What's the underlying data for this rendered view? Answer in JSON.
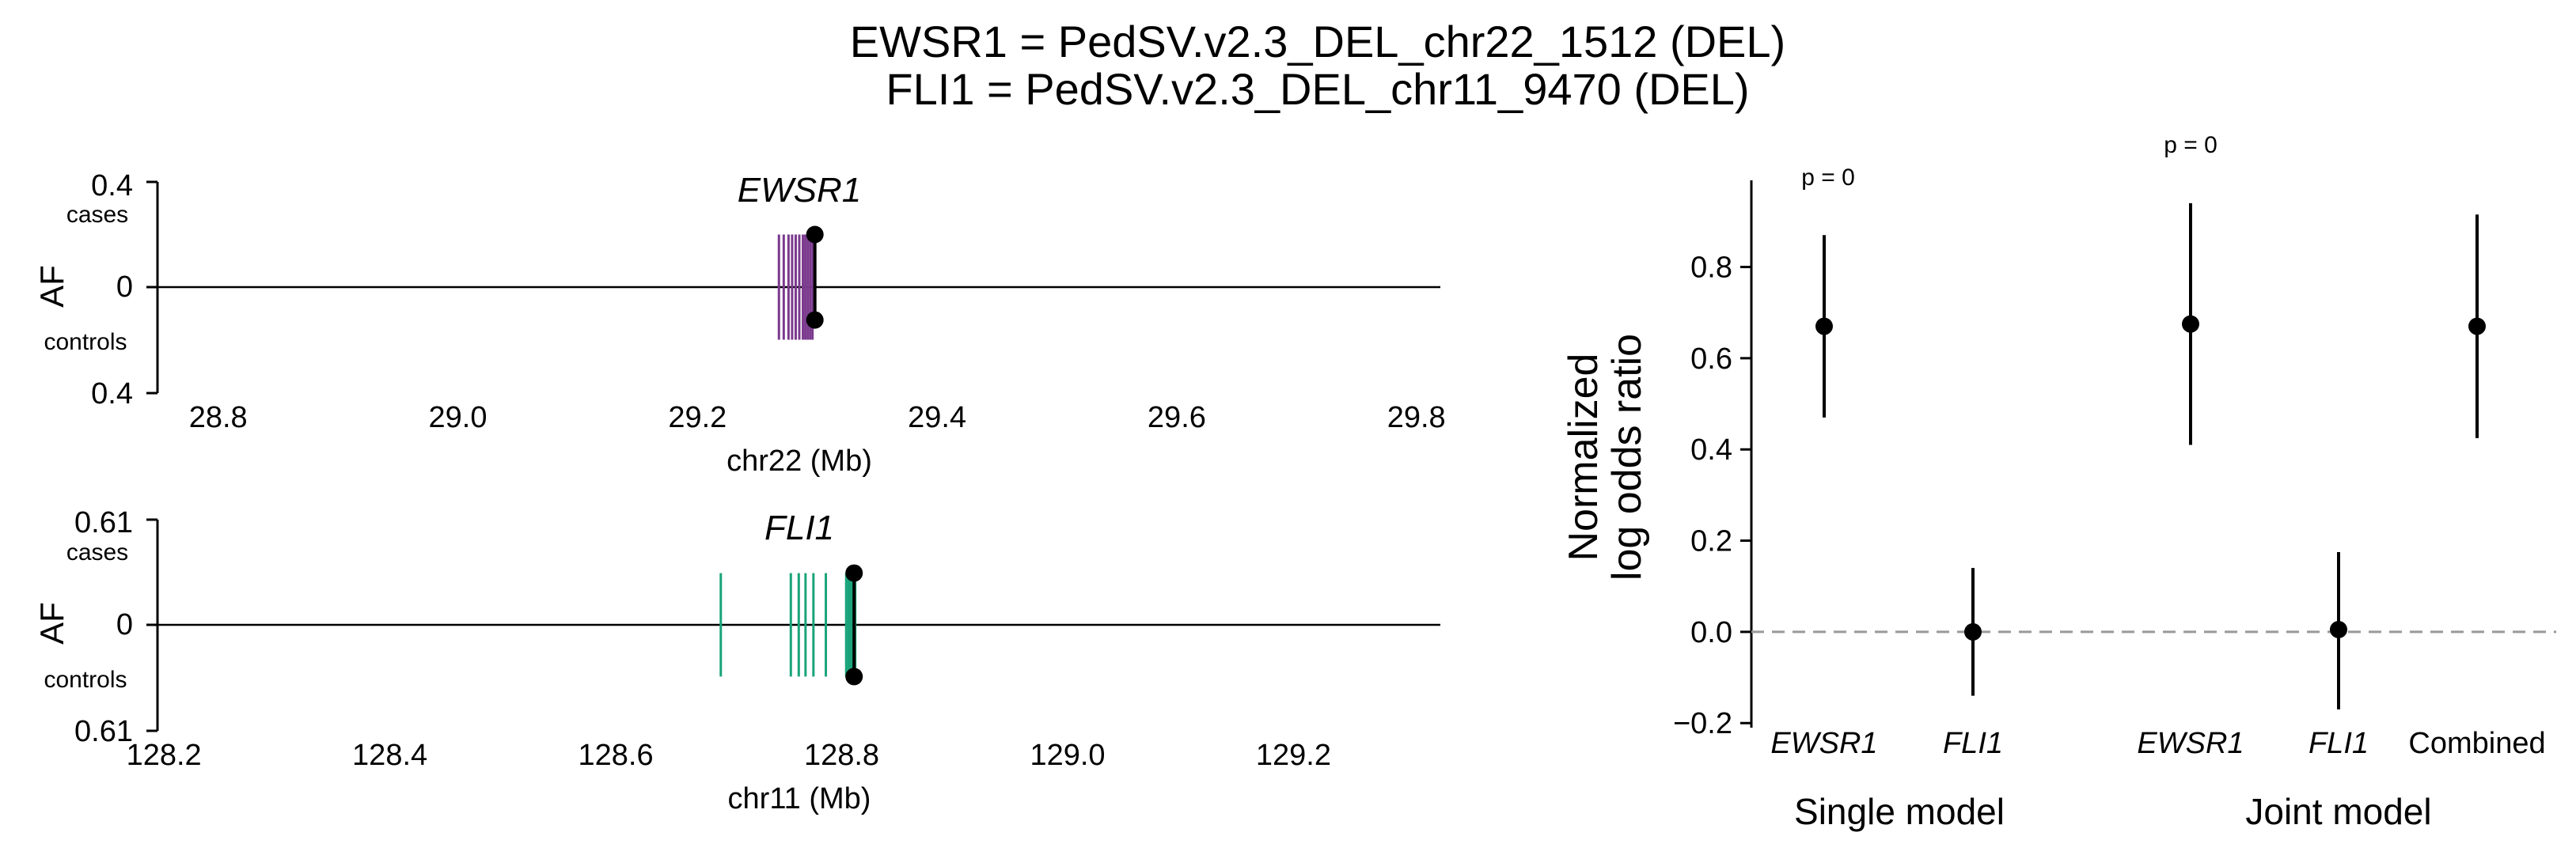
{
  "figure": {
    "title_lines": [
      "EWSR1 = PedSV.v2.3_DEL_chr22_1512 (DEL)",
      "FLI1 = PedSV.v2.3_DEL_chr11_9470 (DEL)"
    ]
  },
  "colors": {
    "ewsr1": "#7b3a8e",
    "fli1": "#1aa37a",
    "points": "#000000",
    "zero_line": "#999999"
  },
  "chart_data": [
    {
      "type": "scatter",
      "title": "EWSR1",
      "xlabel": "chr22 (Mb)",
      "ylabel": "AF",
      "ylabels": {
        "top": "cases",
        "bottom": "controls"
      },
      "ytick_labels": [
        "0.4",
        "0",
        "0.4"
      ],
      "xlim": [
        28.75,
        29.82
      ],
      "ylim": [
        -0.4,
        0.4
      ],
      "xticks": [
        28.8,
        29.0,
        29.2,
        29.4,
        29.6,
        29.8
      ],
      "xtick_labels": [
        "28.8",
        "29.0",
        "29.2",
        "29.4",
        "29.6",
        "29.8"
      ],
      "gene_exon_positions_mb": [
        29.268,
        29.272,
        29.276,
        29.279,
        29.282,
        29.285,
        29.288,
        29.29,
        29.292,
        29.294,
        29.296
      ],
      "gene_span_af": 0.2,
      "sv_position_mb": 29.298,
      "af_cases": 0.2,
      "af_controls": -0.125,
      "color": "#7b3a8e"
    },
    {
      "type": "scatter",
      "title": "FLI1",
      "xlabel": "chr11 (Mb)",
      "ylabel": "AF",
      "ylabels": {
        "top": "cases",
        "bottom": "controls"
      },
      "ytick_labels": [
        "0.61",
        "0",
        "0.61"
      ],
      "xlim": [
        128.195,
        129.33
      ],
      "ylim": [
        -0.61,
        0.61
      ],
      "xticks": [
        128.2,
        128.4,
        128.6,
        128.8,
        129.0,
        129.2
      ],
      "xtick_labels": [
        "128.2",
        "128.4",
        "128.6",
        "128.8",
        "129.0",
        "129.2"
      ],
      "gene_exon_positions_mb": [
        128.693,
        128.755,
        128.762,
        128.768,
        128.775,
        128.786,
        128.804,
        128.806,
        128.808,
        128.81,
        128.812
      ],
      "gene_span_af": 0.3,
      "sv_position_mb": 128.811,
      "af_cases": 0.3,
      "af_controls": -0.3,
      "color": "#1aa37a"
    },
    {
      "type": "scatter",
      "title": "",
      "xlabel": "",
      "ylabel_lines": [
        "Normalized",
        "log odds ratio"
      ],
      "ylim": [
        -0.21,
        0.99
      ],
      "yticks": [
        -0.2,
        0.0,
        0.2,
        0.4,
        0.6,
        0.8
      ],
      "ytick_labels": [
        "−0.2",
        "0.0",
        "0.2",
        "0.4",
        "0.6",
        "0.8"
      ],
      "categories": [
        "EWSR1",
        "FLI1",
        "EWSR1",
        "FLI1",
        "Combined"
      ],
      "category_italic": [
        true,
        true,
        true,
        true,
        false
      ],
      "x_positions": [
        0,
        1,
        2.6,
        3.6,
        4.6
      ],
      "values": [
        0.67,
        0.0,
        0.675,
        0.005,
        0.67
      ],
      "ci_low": [
        0.47,
        -0.14,
        0.41,
        -0.17,
        0.425
      ],
      "ci_high": [
        0.87,
        0.14,
        0.94,
        0.175,
        0.915
      ],
      "groups": [
        {
          "name": "Single model",
          "p_label": "p = 0",
          "members": [
            0,
            1
          ]
        },
        {
          "name": "Joint model",
          "p_label": "p = 0",
          "members": [
            2,
            3,
            4
          ]
        }
      ],
      "reference_line_y": 0.0
    }
  ]
}
